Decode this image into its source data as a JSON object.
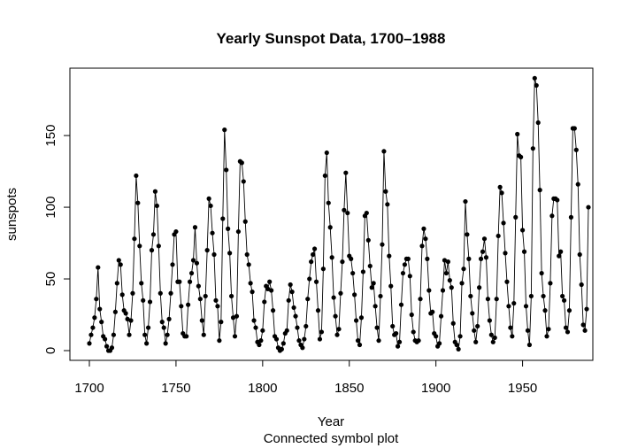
{
  "chart_data": {
    "type": "line",
    "title": "Yearly Sunspot Data, 1700–1988",
    "xlabel": "Year",
    "subtitle": "Connected symbol plot",
    "ylabel": "sunspots",
    "xlim": [
      1700,
      1988
    ],
    "ylim": [
      0,
      190.2
    ],
    "x_ticks": [
      1700,
      1750,
      1800,
      1850,
      1900,
      1950
    ],
    "y_ticks": [
      0,
      50,
      100,
      150
    ],
    "grid": false,
    "legend": "none",
    "colors": {
      "line": "#000000",
      "points": "#000000",
      "frame": "#000000"
    },
    "x_start": 1700,
    "values": [
      5,
      11,
      16,
      23,
      36,
      58,
      29,
      20,
      10,
      8,
      3,
      0,
      0,
      2,
      11,
      27,
      47,
      63,
      60,
      39,
      28,
      26,
      22,
      11,
      21,
      40,
      78,
      122,
      103,
      73,
      47,
      35,
      11,
      5,
      16,
      34,
      70,
      81,
      111,
      101,
      73,
      40,
      20,
      16,
      5,
      11,
      22,
      40,
      60,
      81,
      83,
      48,
      48,
      31,
      12,
      10,
      10,
      32,
      48,
      54,
      63,
      86,
      61,
      45,
      36,
      21,
      11,
      38,
      70,
      106,
      101,
      82,
      67,
      35,
      31,
      7,
      20,
      92,
      154,
      126,
      85,
      68,
      38,
      23,
      10,
      24,
      83,
      132,
      131,
      118,
      90,
      67,
      60,
      47,
      41,
      21,
      16,
      6,
      4,
      7,
      14,
      34,
      45,
      43,
      48,
      42,
      28,
      10,
      8,
      2,
      0,
      1,
      5,
      12,
      14,
      35,
      46,
      41,
      30,
      24,
      16,
      7,
      4,
      2,
      8,
      17,
      36,
      50,
      62,
      67,
      71,
      48,
      28,
      8,
      13,
      57,
      122,
      138,
      103,
      86,
      65,
      37,
      24,
      11,
      15,
      40,
      62,
      98,
      124,
      96,
      66,
      64,
      54,
      39,
      21,
      7,
      4,
      23,
      55,
      94,
      96,
      77,
      59,
      44,
      47,
      31,
      16,
      7,
      38,
      74,
      139,
      111,
      102,
      66,
      45,
      17,
      11,
      12,
      3,
      6,
      32,
      54,
      60,
      64,
      64,
      52,
      25,
      13,
      7,
      6,
      7,
      36,
      73,
      85,
      78,
      64,
      42,
      26,
      27,
      12,
      10,
      3,
      5,
      24,
      42,
      63,
      54,
      62,
      49,
      44,
      19,
      6,
      4,
      1,
      10,
      47,
      57,
      104,
      81,
      64,
      38,
      26,
      14,
      6,
      17,
      44,
      64,
      69,
      78,
      65,
      36,
      21,
      11,
      6,
      9,
      36,
      80,
      114,
      110,
      89,
      68,
      48,
      31,
      16,
      10,
      33,
      93,
      151,
      136,
      135,
      84,
      69,
      31,
      14,
      4,
      38,
      141,
      190,
      185,
      159,
      112,
      54,
      38,
      28,
      10,
      15,
      47,
      94,
      106,
      106,
      105,
      66,
      69,
      38,
      35,
      16,
      13,
      28,
      93,
      155,
      155,
      140,
      116,
      67,
      46,
      18,
      14,
      29,
      100
    ]
  }
}
